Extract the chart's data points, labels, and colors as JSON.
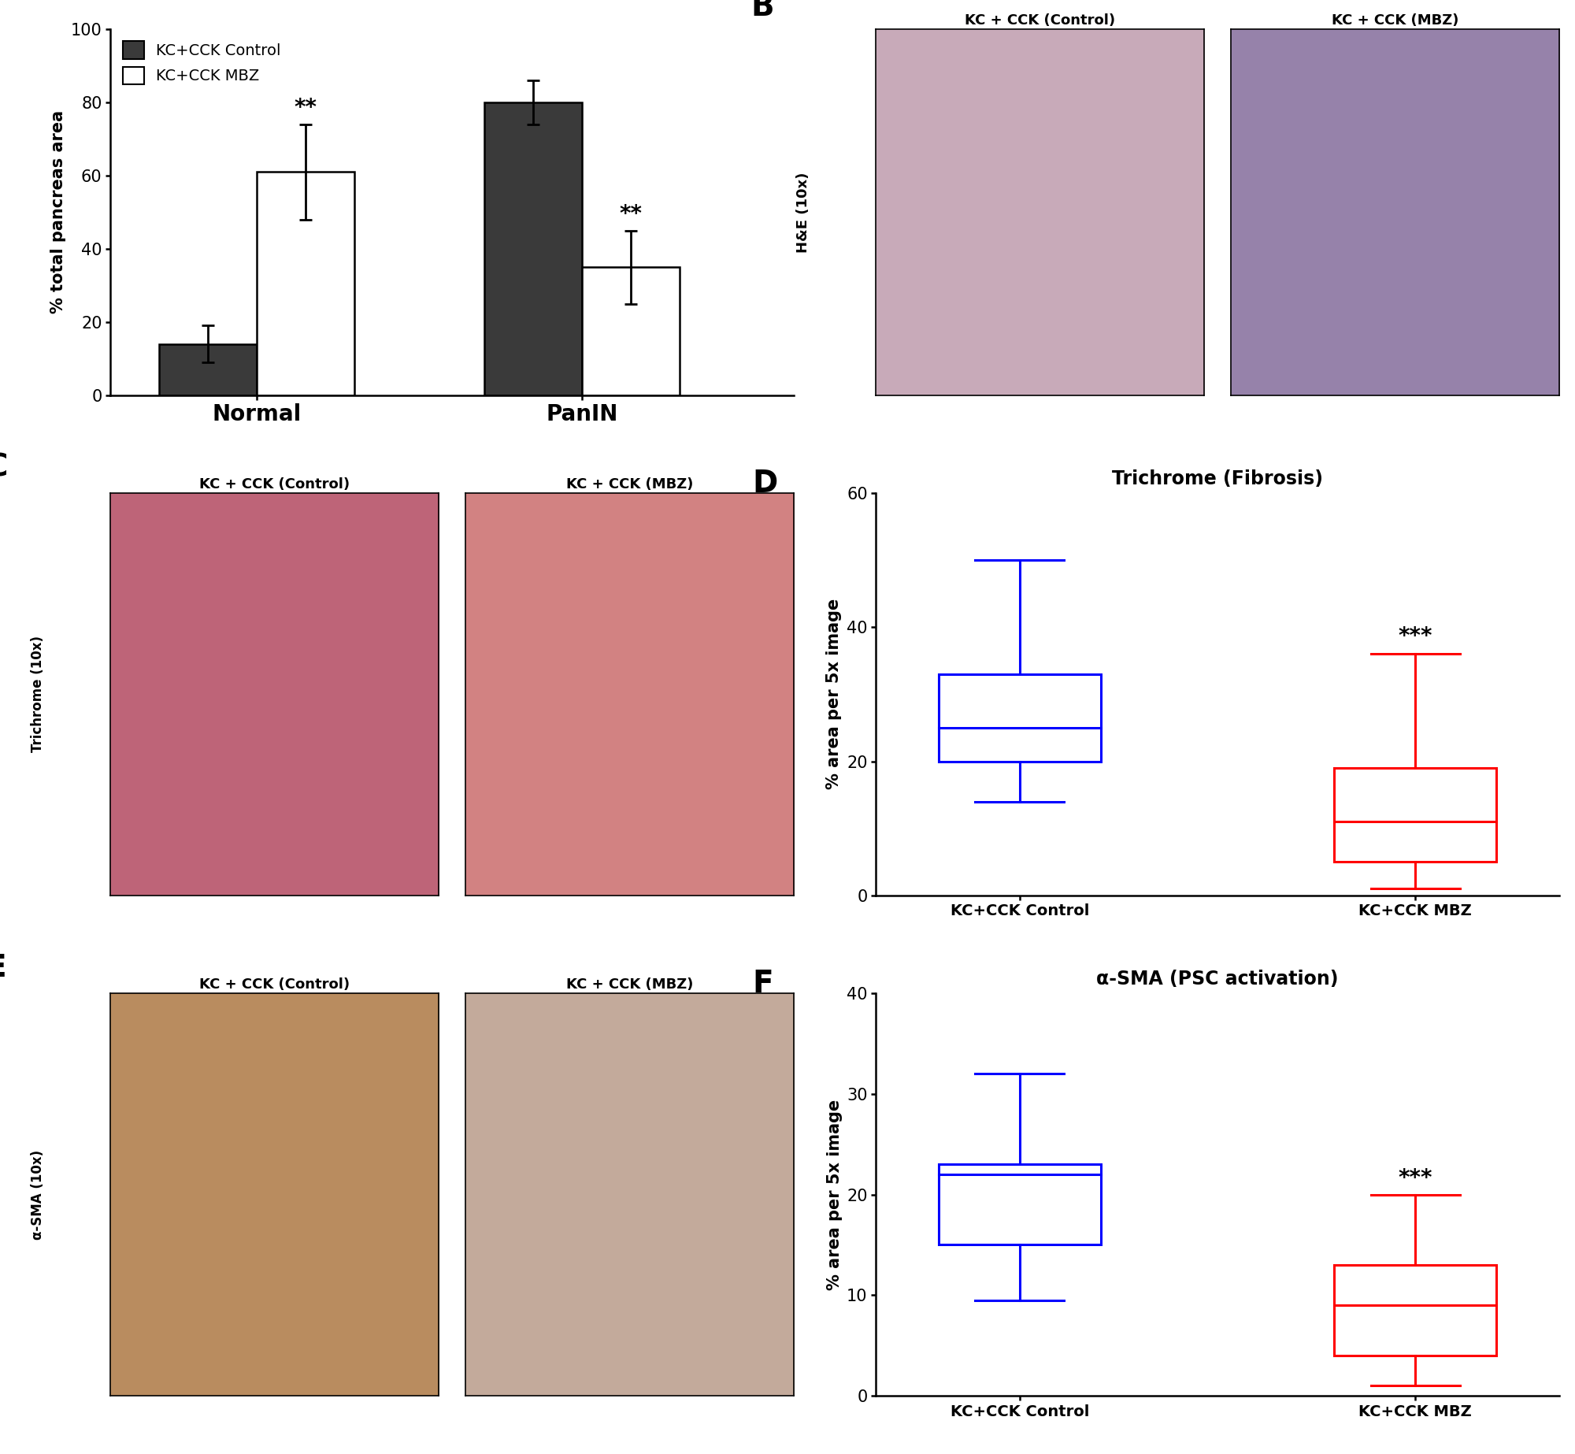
{
  "panel_A": {
    "groups": [
      "Normal",
      "PanIN"
    ],
    "control_means": [
      14,
      80
    ],
    "control_errors": [
      5,
      6
    ],
    "mbz_means": [
      61,
      35
    ],
    "mbz_errors": [
      13,
      10
    ],
    "control_color": "#3a3a3a",
    "mbz_color": "#ffffff",
    "ylabel": "% total pancreas area",
    "ylim": [
      0,
      100
    ],
    "yticks": [
      0,
      20,
      40,
      60,
      80,
      100
    ],
    "significance_mbz": [
      "**",
      "**"
    ]
  },
  "panel_D": {
    "title": "Trichrome (Fibrosis)",
    "control_box": {
      "median": 25,
      "q1": 20,
      "q3": 33,
      "whisker_low": 14,
      "whisker_high": 50,
      "color": "#0000ff"
    },
    "mbz_box": {
      "median": 11,
      "q1": 5,
      "q3": 19,
      "whisker_low": 1,
      "whisker_high": 36,
      "color": "#ff0000"
    },
    "ylabel": "% area per 5x image",
    "ylim": [
      0,
      60
    ],
    "yticks": [
      0,
      20,
      40,
      60
    ],
    "significance": "***",
    "xlabel_control": "KC+CCK Control",
    "xlabel_mbz": "KC+CCK MBZ"
  },
  "panel_F": {
    "title": "α-SMA (PSC activation)",
    "control_box": {
      "median": 22,
      "q1": 15,
      "q3": 23,
      "whisker_low": 9.5,
      "whisker_high": 32,
      "color": "#0000ff"
    },
    "mbz_box": {
      "median": 9,
      "q1": 4,
      "q3": 13,
      "whisker_low": 1,
      "whisker_high": 20,
      "color": "#ff0000"
    },
    "ylabel": "% area per 5x image",
    "ylim": [
      0,
      40
    ],
    "yticks": [
      0,
      10,
      20,
      30,
      40
    ],
    "significance": "***",
    "xlabel_control": "KC+CCK Control",
    "xlabel_mbz": "KC+CCK MBZ"
  },
  "label_fontsize": 20,
  "tick_fontsize": 15,
  "title_fontsize": 17,
  "legend_fontsize": 14,
  "axis_label_fontsize": 15,
  "panel_label_fontsize": 28
}
